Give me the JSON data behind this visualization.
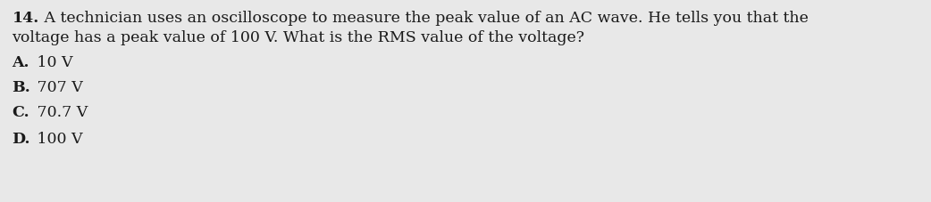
{
  "background_color": "#e8e8e8",
  "question_number": "14.",
  "question_line1": " A technician uses an oscilloscope to measure the peak value of an AC wave. He tells you that the",
  "question_line2": "voltage has a peak value of 100 V. What is the RMS value of the voltage?",
  "options": [
    [
      "A.",
      " 10 V"
    ],
    [
      "B.",
      " 707 V"
    ],
    [
      "C.",
      " 70.7 V"
    ],
    [
      "D.",
      " 100 V"
    ]
  ],
  "font_size_question": 12.5,
  "font_size_options": 12.5,
  "text_color": "#1a1a1a",
  "fig_width": 10.42,
  "fig_height": 2.27,
  "dpi": 100
}
